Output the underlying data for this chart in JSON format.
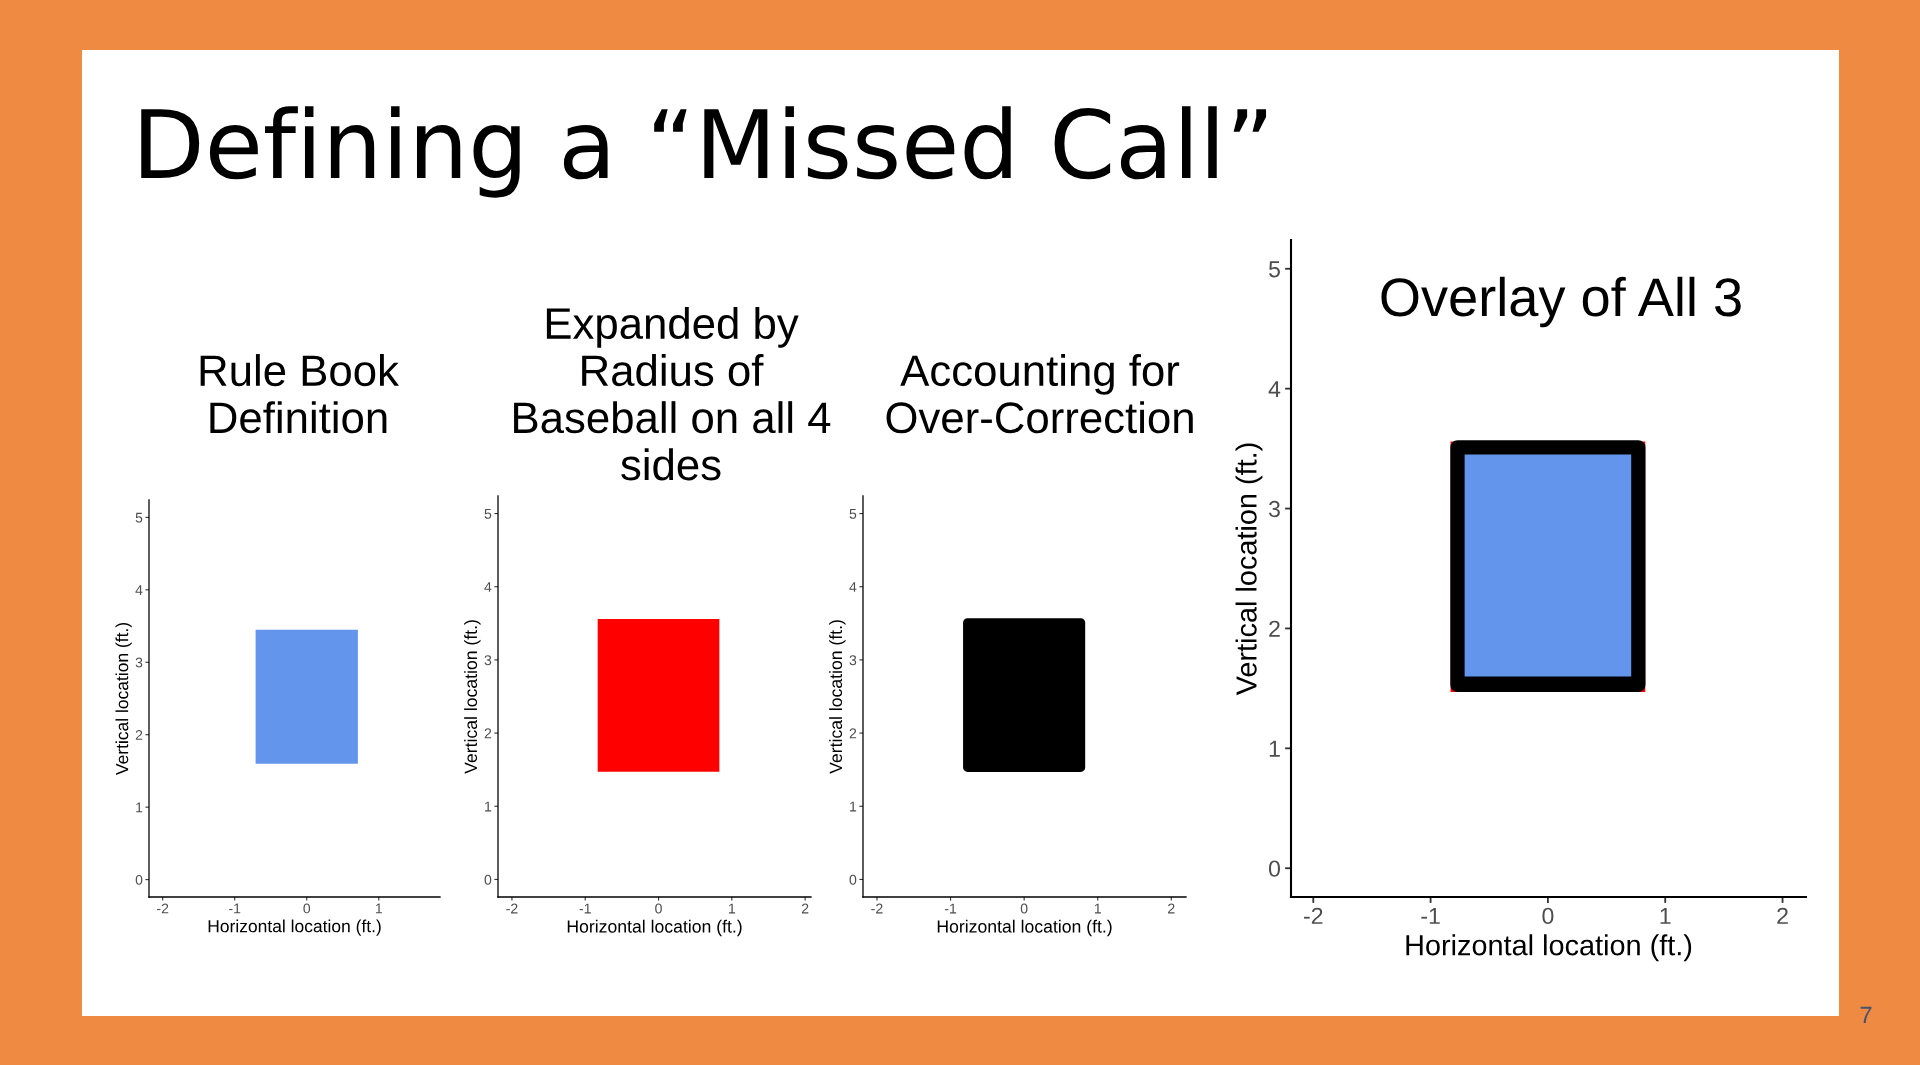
{
  "chart_data": [
    {
      "type": "area",
      "title": "Rule Book Definition",
      "xlabel": "Horizontal location (ft.)",
      "ylabel": "Vertical location (ft.)",
      "xlim": [
        -2.19,
        1.85
      ],
      "ylim": [
        -0.24,
        5.24
      ],
      "xticks": [
        -2,
        -1,
        0,
        1
      ],
      "yticks": [
        0,
        1,
        2,
        3,
        4,
        5
      ],
      "series": [
        {
          "color": "#6495ed",
          "x": [
            -0.71,
            0.71,
            0.71,
            -0.71
          ],
          "values": [
            1.6,
            1.6,
            3.45,
            3.45
          ]
        }
      ]
    },
    {
      "type": "area",
      "title": "Expanded by Radius of Baseball on all 4 sides",
      "xlabel": "Horizontal location (ft.)",
      "ylabel": "Vertical location (ft.)",
      "xlim": [
        -2.19,
        2.08
      ],
      "ylim": [
        -0.24,
        5.24
      ],
      "xticks": [
        -2,
        -1,
        0,
        1,
        2
      ],
      "yticks": [
        0,
        1,
        2,
        3,
        4,
        5
      ],
      "series": [
        {
          "color": "#ff0000",
          "x": [
            -0.83,
            0.83,
            0.83,
            -0.83
          ],
          "values": [
            1.47,
            1.47,
            3.56,
            3.56
          ]
        }
      ]
    },
    {
      "type": "area",
      "title": "Accounting for Over-Correction",
      "xlabel": "Horizontal location (ft.)",
      "ylabel": "Vertical location (ft.)",
      "xlim": [
        -2.19,
        2.2
      ],
      "ylim": [
        -0.24,
        5.24
      ],
      "xticks": [
        -2,
        -1,
        0,
        1,
        2
      ],
      "yticks": [
        0,
        1,
        2,
        3,
        4,
        5
      ],
      "series": [
        {
          "color": "#000000",
          "line_style": "solid",
          "x": [
            -0.77,
            0.77,
            0.77,
            -0.77
          ],
          "values": [
            1.53,
            1.53,
            3.51,
            3.51
          ]
        }
      ]
    },
    {
      "type": "area",
      "title": "Overlay of All 3",
      "xlabel": "Horizontal location (ft.)",
      "ylabel": "Vertical location (ft.)",
      "xlim": [
        -2.19,
        2.2
      ],
      "ylim": [
        -0.24,
        5.24
      ],
      "xticks": [
        -2,
        -1,
        0,
        1,
        2
      ],
      "yticks": [
        0,
        1,
        2,
        3,
        4,
        5
      ],
      "annotations": [
        "7"
      ],
      "series": [
        {
          "color": "#ff0000",
          "x": [
            -0.83,
            0.83,
            0.83,
            -0.83
          ],
          "values": [
            1.47,
            1.47,
            3.56,
            3.56
          ]
        },
        {
          "color": "#000000",
          "line_style": "solid",
          "x": [
            -0.77,
            0.77,
            0.77,
            -0.77
          ],
          "values": [
            1.53,
            1.53,
            3.51,
            3.51
          ]
        },
        {
          "color": "#6495ed",
          "x": [
            -0.71,
            0.71,
            0.71,
            -0.71
          ],
          "values": [
            1.6,
            1.6,
            3.45,
            3.45
          ]
        }
      ]
    },
    {
      "type": "other",
      "title": "Defining a “Missed Call”"
    }
  ]
}
